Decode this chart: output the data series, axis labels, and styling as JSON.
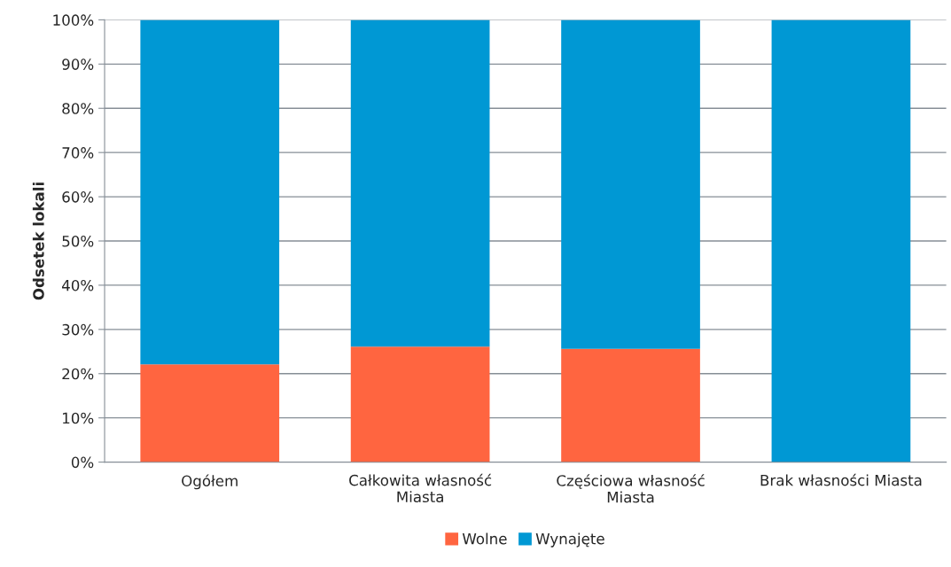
{
  "chart_data": {
    "type": "bar",
    "stacked": true,
    "ylabel": "Odsetek lokali",
    "categories": [
      "Ogółem",
      "Całkowita własność\nMiasta",
      "Częściowa własność\nMiasta",
      "Brak własności Miasta"
    ],
    "series": [
      {
        "name": "Wolne",
        "color": "#ff6540",
        "values": [
          22.1,
          26.1,
          25.6,
          0
        ]
      },
      {
        "name": "Wynajęte",
        "color": "#0098d4",
        "values": [
          77.9,
          73.9,
          74.4,
          100
        ]
      }
    ],
    "ylim": [
      0,
      100
    ],
    "yticks": [
      {
        "value": 0,
        "label": "0%"
      },
      {
        "value": 10,
        "label": "10%"
      },
      {
        "value": 20,
        "label": "20%"
      },
      {
        "value": 30,
        "label": "30%"
      },
      {
        "value": 40,
        "label": "40%"
      },
      {
        "value": 50,
        "label": "50%"
      },
      {
        "value": 60,
        "label": "60%"
      },
      {
        "value": 70,
        "label": "70%"
      },
      {
        "value": 80,
        "label": "80%"
      },
      {
        "value": 90,
        "label": "90%"
      },
      {
        "value": 100,
        "label": "100%"
      }
    ],
    "grid": "y",
    "legend": "bottom"
  }
}
